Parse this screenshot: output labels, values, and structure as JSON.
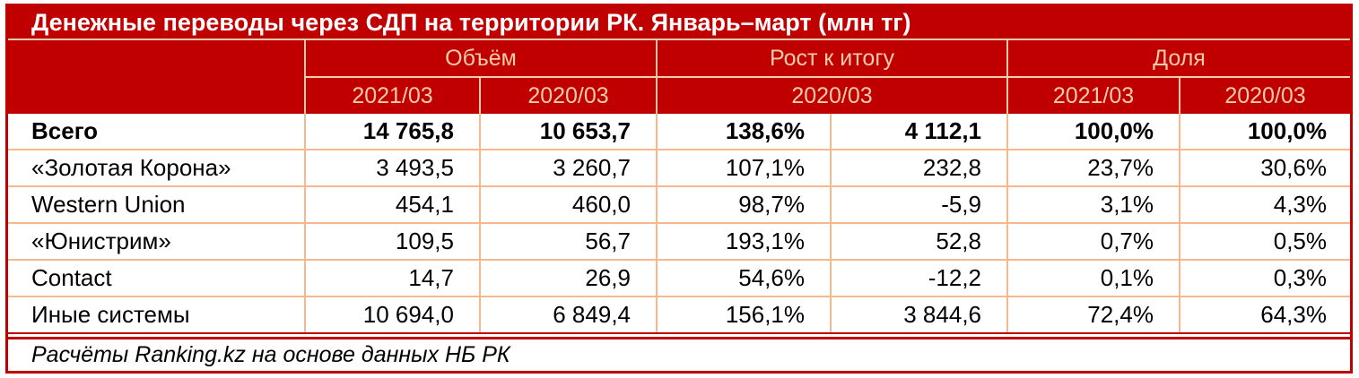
{
  "table": {
    "title": "Денежные переводы через СДП на территории РК. Январь–март (млн тг)",
    "header": {
      "groups": [
        "Объём",
        "Рост к итогу",
        "Доля"
      ],
      "sub": [
        "2021/03",
        "2020/03",
        "2020/03",
        "2021/03",
        "2020/03"
      ]
    },
    "rows": [
      {
        "cells": [
          "Всего",
          "14 765,8",
          "10 653,7",
          "138,6%",
          "4 112,1",
          "100,0%",
          "100,0%"
        ]
      },
      {
        "cells": [
          "«Золотая Корона»",
          "3 493,5",
          "3 260,7",
          "107,1%",
          "232,8",
          "23,7%",
          "30,6%"
        ]
      },
      {
        "cells": [
          "Western Union",
          "454,1",
          "460,0",
          "98,7%",
          "-5,9",
          "3,1%",
          "4,3%"
        ]
      },
      {
        "cells": [
          "«Юнистрим»",
          "109,5",
          "56,7",
          "193,1%",
          "52,8",
          "0,7%",
          "0,5%"
        ]
      },
      {
        "cells": [
          "Contact",
          "14,7",
          "26,9",
          "54,6%",
          "-12,2",
          "0,1%",
          "0,3%"
        ]
      },
      {
        "cells": [
          "Иные системы",
          "10 694,0",
          "6 849,4",
          "156,1%",
          "3 844,6",
          "72,4%",
          "64,3%"
        ]
      }
    ],
    "footer": "Расчёты Ranking.kz на основе данных НБ РК"
  },
  "chart_data": {
    "type": "table",
    "title": "Денежные переводы через СДП на территории РК. Январь–март (млн тг)",
    "units": "млн тг",
    "column_groups": [
      {
        "label": "Объём",
        "columns": [
          "2021/03",
          "2020/03"
        ]
      },
      {
        "label": "Рост к итогу",
        "columns": [
          "2020/03 (%)",
          "2020/03 (абс.)"
        ]
      },
      {
        "label": "Доля",
        "columns": [
          "2021/03",
          "2020/03"
        ]
      }
    ],
    "rows": [
      {
        "label": "Всего",
        "volume_2021": 14765.8,
        "volume_2020": 10653.7,
        "growth_pct": 138.6,
        "growth_abs": 4112.1,
        "share_2021_pct": 100.0,
        "share_2020_pct": 100.0
      },
      {
        "label": "«Золотая Корона»",
        "volume_2021": 3493.5,
        "volume_2020": 3260.7,
        "growth_pct": 107.1,
        "growth_abs": 232.8,
        "share_2021_pct": 23.7,
        "share_2020_pct": 30.6
      },
      {
        "label": "Western Union",
        "volume_2021": 454.1,
        "volume_2020": 460.0,
        "growth_pct": 98.7,
        "growth_abs": -5.9,
        "share_2021_pct": 3.1,
        "share_2020_pct": 4.3
      },
      {
        "label": "«Юнистрим»",
        "volume_2021": 109.5,
        "volume_2020": 56.7,
        "growth_pct": 193.1,
        "growth_abs": 52.8,
        "share_2021_pct": 0.7,
        "share_2020_pct": 0.5
      },
      {
        "label": "Contact",
        "volume_2021": 14.7,
        "volume_2020": 26.9,
        "growth_pct": 54.6,
        "growth_abs": -12.2,
        "share_2021_pct": 0.1,
        "share_2020_pct": 0.3
      },
      {
        "label": "Иные системы",
        "volume_2021": 10694.0,
        "volume_2020": 6849.4,
        "growth_pct": 156.1,
        "growth_abs": 3844.6,
        "share_2021_pct": 72.4,
        "share_2020_pct": 64.3
      }
    ],
    "source": "Расчёты Ranking.kz на основе данных НБ РК"
  },
  "colors": {
    "brand_red": "#C00000",
    "title_text": "#FFFFFF",
    "header_text": "#F8CBAD",
    "header_grid_line": "#F8CBAD",
    "body_grid_line": "#F6B98E",
    "body_text": "#000000"
  }
}
